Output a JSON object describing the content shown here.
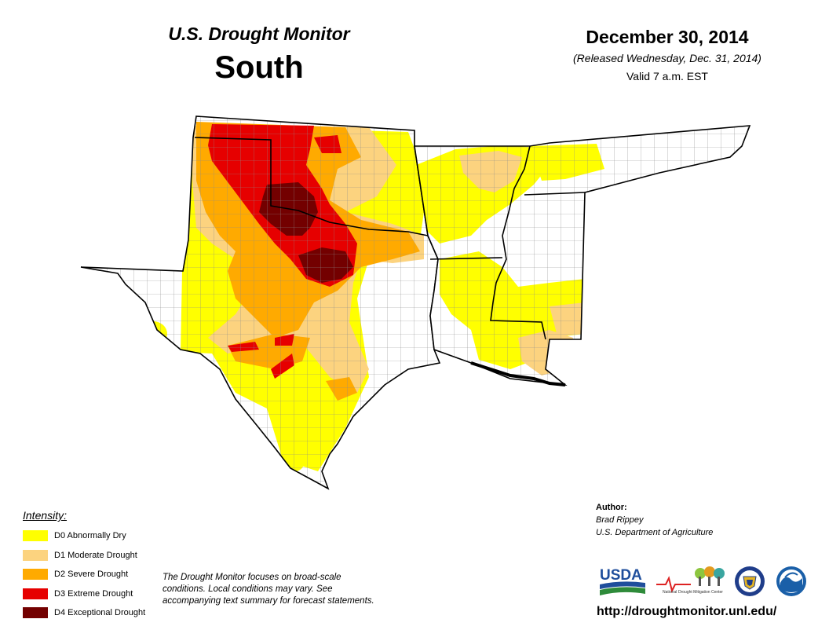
{
  "header": {
    "product": "U.S. Drought Monitor",
    "region": "South",
    "date": "December 30, 2014",
    "released": "(Released Wednesday, Dec. 31, 2014)",
    "valid": "Valid 7 a.m. EST"
  },
  "colors": {
    "D0": "#ffff00",
    "D1": "#fcd37f",
    "D2": "#ffaa00",
    "D3": "#e60000",
    "D4": "#730000",
    "boundary": "#000000",
    "county_line": "#9a9a9a"
  },
  "legend": {
    "heading": "Intensity:",
    "items": [
      {
        "label": "D0 Abnormally Dry"
      },
      {
        "label": "D1 Moderate Drought"
      },
      {
        "label": "D2 Severe Drought"
      },
      {
        "label": "D3 Extreme Drought"
      },
      {
        "label": "D4 Exceptional Drought"
      }
    ]
  },
  "note": "The Drought Monitor focuses on broad-scale conditions. Local conditions may vary. See accompanying text summary for forecast statements.",
  "author": {
    "label": "Author:",
    "name": "Brad Rippey",
    "org": "U.S. Department of Agriculture"
  },
  "logos": {
    "usda": "USDA",
    "ndmc_line1": "National",
    "ndmc_line2": "Drought Mitigation Center"
  },
  "url": "http://droughtmonitor.unl.edu/",
  "map": {
    "states": [
      "Texas",
      "Oklahoma",
      "Arkansas",
      "Louisiana",
      "Mississippi",
      "Tennessee"
    ]
  }
}
